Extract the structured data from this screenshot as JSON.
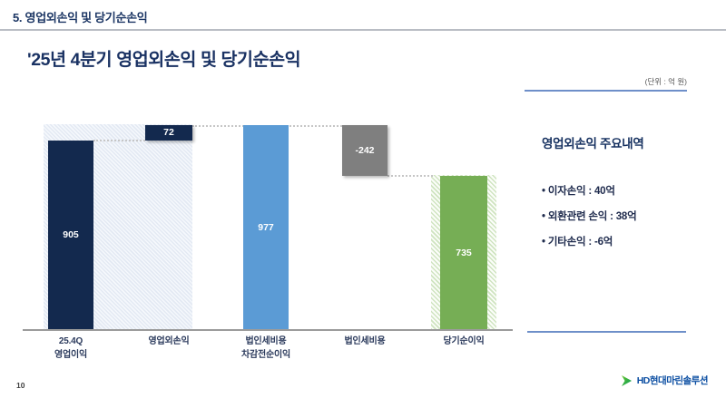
{
  "slide": {
    "section_header": "5. 영업외손익 및 당기순손익",
    "title": "'25년 4분기 영업외손익 및 당기순손익",
    "unit_note": "(단위 : 억 원)",
    "page_number": "10",
    "logo_text": "HD현대마린솔루션"
  },
  "chart_data": {
    "type": "bar",
    "subtype": "waterfall",
    "title": "'25년 4분기 영업외손익 및 당기순손익",
    "unit": "억 원",
    "categories": [
      "25.4Q 영업이익",
      "영업외손익",
      "법인세비용 차감전순이익",
      "법인세비용",
      "당기순이익"
    ],
    "category_lines": [
      [
        "25.4Q",
        "영업이익"
      ],
      [
        "영업외손익"
      ],
      [
        "법인세비용",
        "차감전순이익"
      ],
      [
        "법인세비용"
      ],
      [
        "당기순이익"
      ]
    ],
    "values": [
      905,
      72,
      977,
      -242,
      735
    ],
    "kinds": [
      "total",
      "delta",
      "total",
      "delta",
      "total"
    ],
    "colors": [
      "#13294E",
      "#13294E",
      "#5B9BD5",
      "#7F7F7F",
      "#76AE55"
    ],
    "ylim": [
      0,
      1000
    ],
    "grid": false,
    "legend": false
  },
  "panel": {
    "heading": "영업외손익 주요내역",
    "items": [
      "이자손익 : 40억",
      "외환관련 손익 : 38억",
      "기타손익 : -6억"
    ]
  }
}
